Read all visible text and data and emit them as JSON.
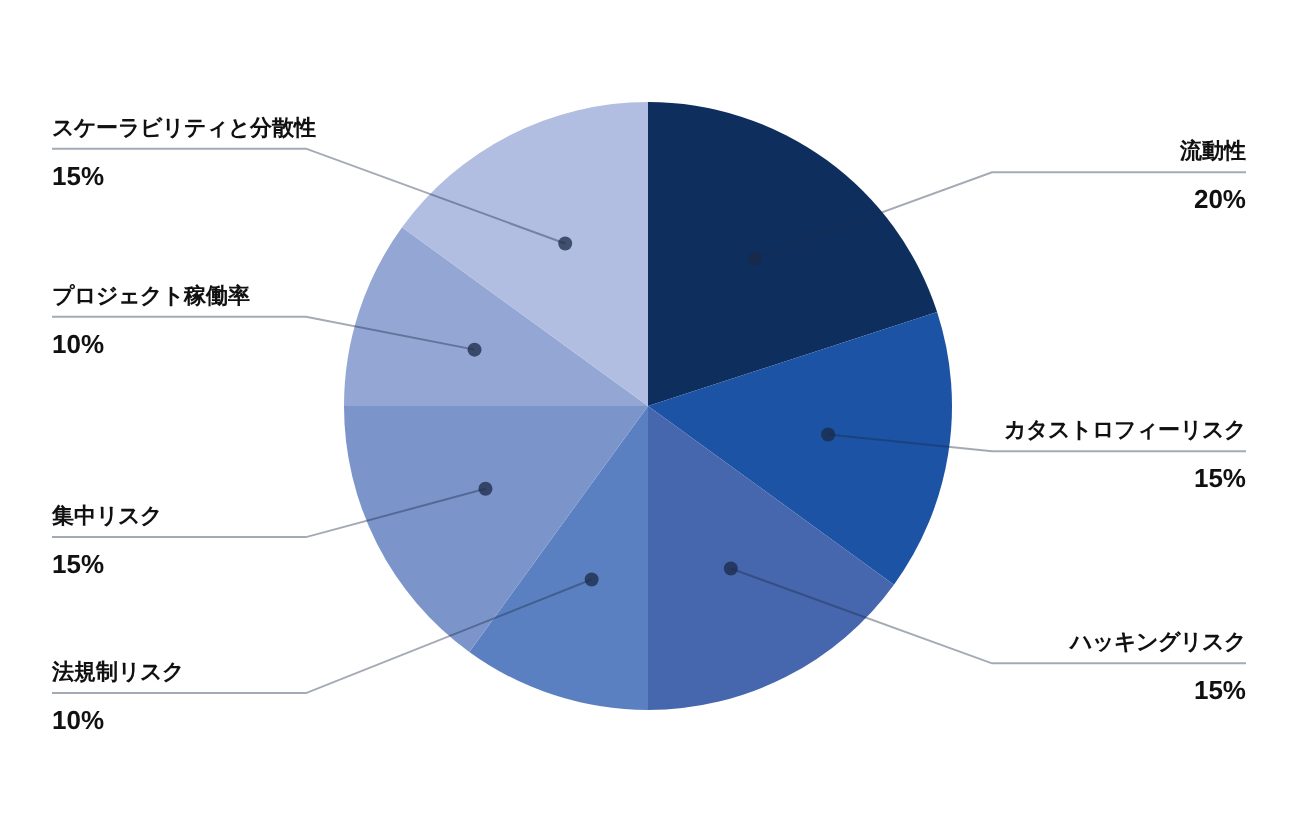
{
  "chart_data": {
    "type": "pie",
    "categories": [
      "流動性",
      "カタストロフィーリスク",
      "ハッキングリスク",
      "法規制リスク",
      "集中リスク",
      "プロジェクト稼働率",
      "スケーラビリティと分散性"
    ],
    "values": [
      20,
      15,
      15,
      10,
      15,
      10,
      15
    ],
    "value_labels": [
      "20%",
      "15%",
      "15%",
      "10%",
      "15%",
      "10%",
      "15%"
    ],
    "colors": [
      "#0e2f5e",
      "#1c53a5",
      "#4666ae",
      "#5a80c1",
      "#7b95cb",
      "#93a6d4",
      "#b1bee1"
    ]
  }
}
